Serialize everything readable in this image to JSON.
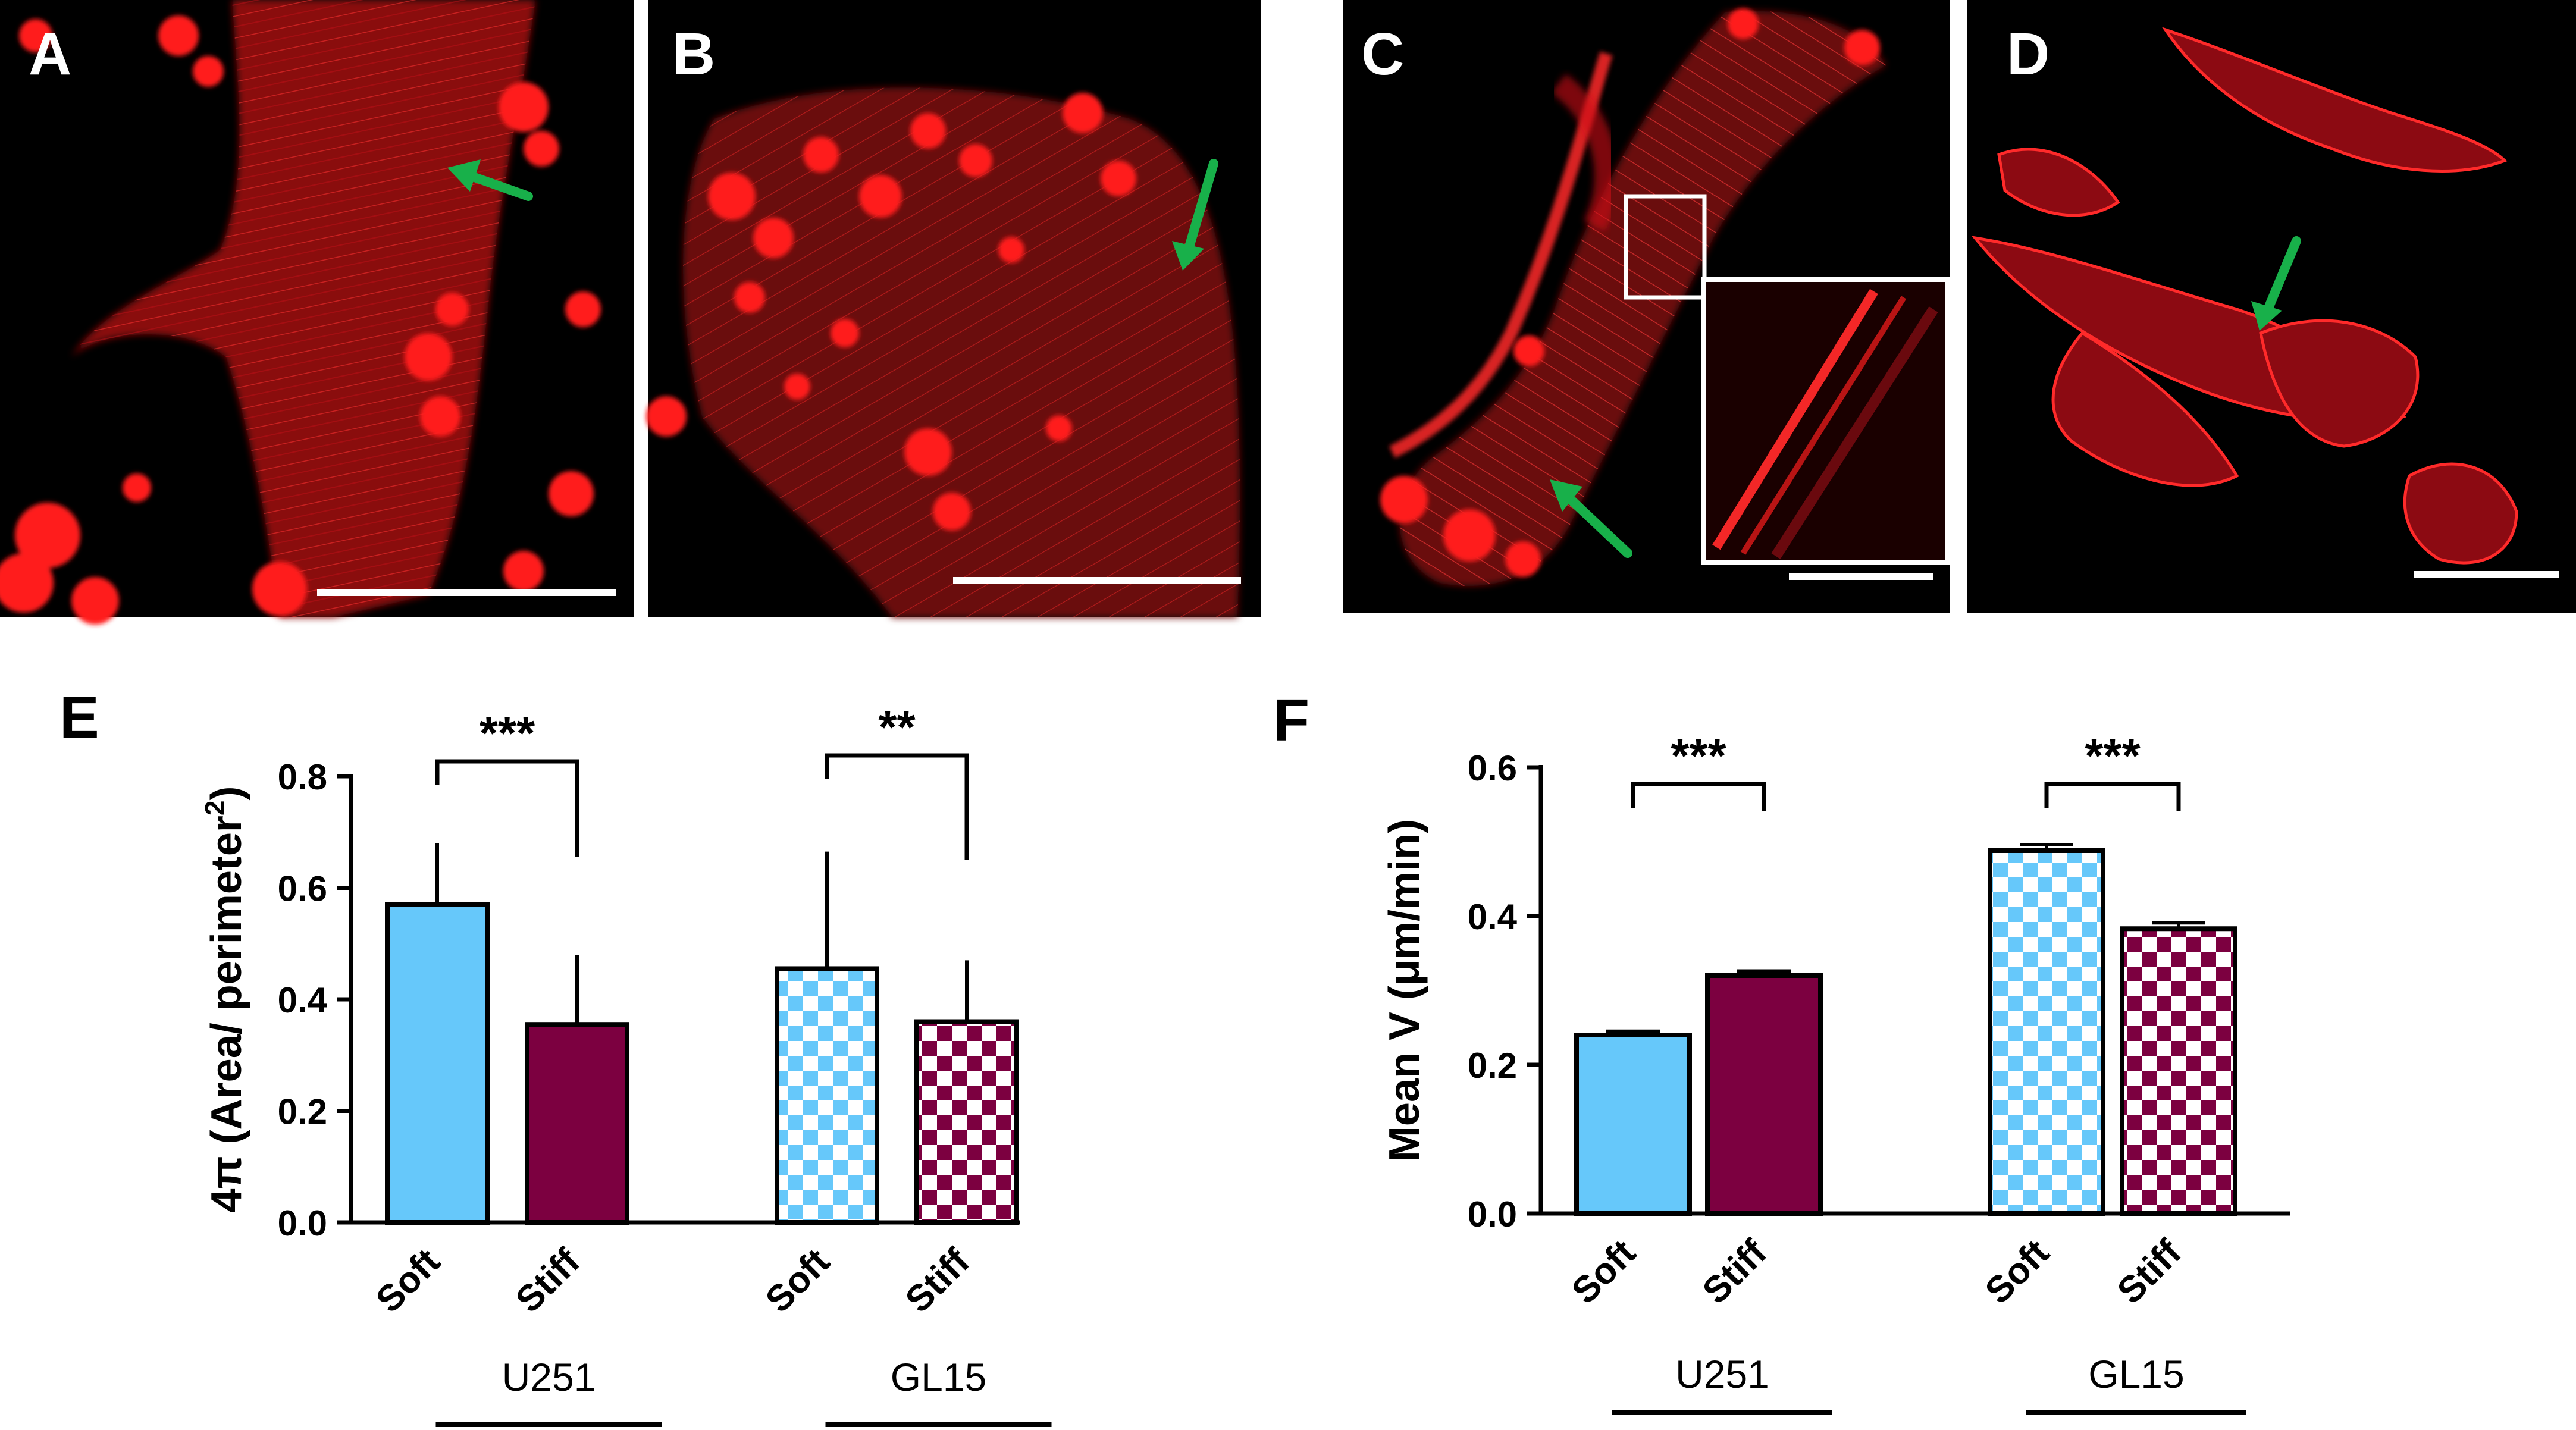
{
  "figure": {
    "panel_letters": [
      "A",
      "B",
      "C",
      "D",
      "E",
      "F"
    ],
    "image_panels": [
      {
        "letter": "A",
        "arrow_direction": "up-left"
      },
      {
        "letter": "B",
        "arrow_direction": "down-left"
      },
      {
        "letter": "C",
        "arrow_direction": "up-left",
        "has_inset": true
      },
      {
        "letter": "D",
        "arrow_direction": "down-left"
      }
    ],
    "colors": {
      "image_background": "#000000",
      "stain": "#e8141c",
      "arrow": "#18b04a",
      "soft": "#66c8fa",
      "stiff": "#7c0040"
    }
  },
  "chart_data": [
    {
      "panel": "E",
      "type": "bar",
      "ylabel_prefix": "4π (Area/ perimeter",
      "ylabel_sup": "2",
      "ylabel_suffix": ")",
      "ylim": [
        0,
        0.8
      ],
      "yticks": [
        "0.0",
        "0.2",
        "0.4",
        "0.6",
        "0.8"
      ],
      "groups": [
        {
          "name": "U251",
          "bars": [
            {
              "label": "Soft",
              "value": 0.57,
              "error": 0.11,
              "fill": "solid",
              "color": "#66c8fa"
            },
            {
              "label": "Stiff",
              "value": 0.355,
              "error": 0.125,
              "fill": "solid",
              "color": "#7c0040"
            }
          ],
          "significance": "***"
        },
        {
          "name": "GL15",
          "bars": [
            {
              "label": "Soft",
              "value": 0.455,
              "error": 0.21,
              "fill": "checker",
              "color": "#66c8fa"
            },
            {
              "label": "Stiff",
              "value": 0.36,
              "error": 0.11,
              "fill": "checker",
              "color": "#7c0040"
            }
          ],
          "significance": "**"
        }
      ]
    },
    {
      "panel": "F",
      "type": "bar",
      "ylabel_prefix": "Mean V (μm/min",
      "ylabel_sup": "",
      "ylabel_suffix": ")",
      "ylim": [
        0,
        0.6
      ],
      "yticks": [
        "0.0",
        "0.2",
        "0.4",
        "0.6"
      ],
      "groups": [
        {
          "name": "U251",
          "bars": [
            {
              "label": "Soft",
              "value": 0.24,
              "error": 0.005,
              "fill": "solid",
              "color": "#66c8fa"
            },
            {
              "label": "Stiff",
              "value": 0.32,
              "error": 0.006,
              "fill": "solid",
              "color": "#7c0040"
            }
          ],
          "significance": "***"
        },
        {
          "name": "GL15",
          "bars": [
            {
              "label": "Soft",
              "value": 0.488,
              "error": 0.008,
              "fill": "checker",
              "color": "#66c8fa"
            },
            {
              "label": "Stiff",
              "value": 0.383,
              "error": 0.008,
              "fill": "checker",
              "color": "#7c0040"
            }
          ],
          "significance": "***"
        }
      ]
    }
  ]
}
